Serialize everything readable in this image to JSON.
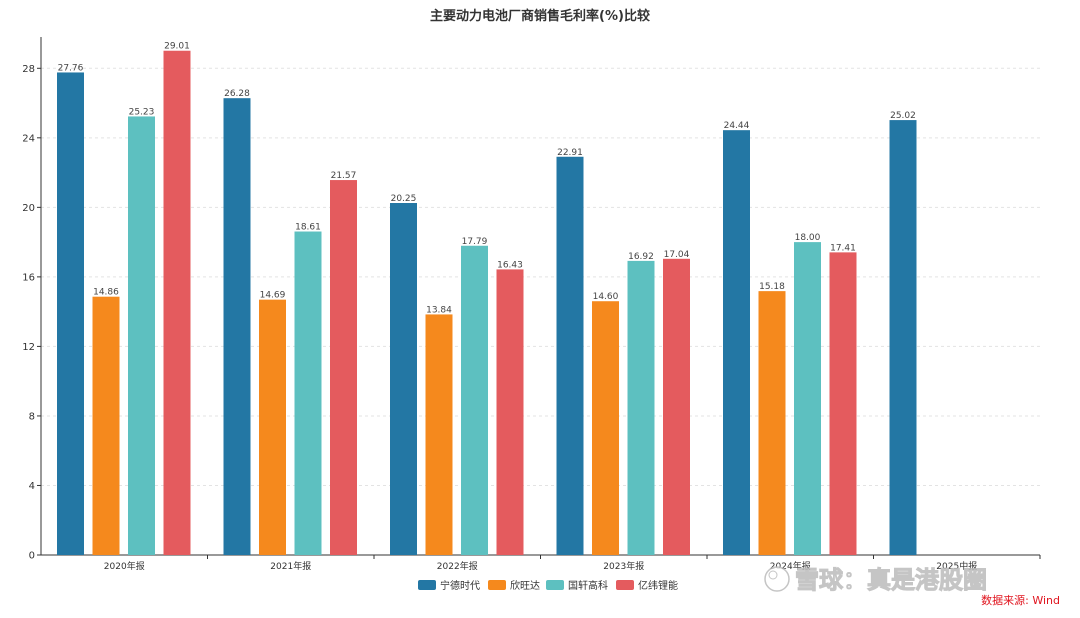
{
  "chart_data": {
    "type": "bar",
    "title": "主要动力电池厂商销售毛利率(%)比较",
    "categories": [
      "2020年报",
      "2021年报",
      "2022年报",
      "2023年报",
      "2024年报",
      "2025中报"
    ],
    "series": [
      {
        "name": "宁德时代",
        "color": "#2377a4",
        "values": [
          27.76,
          26.28,
          20.25,
          22.91,
          24.44,
          25.02
        ]
      },
      {
        "name": "欣旺达",
        "color": "#f5891d",
        "values": [
          14.86,
          14.69,
          13.84,
          14.6,
          15.18,
          null
        ]
      },
      {
        "name": "国轩高科",
        "color": "#5dc0c0",
        "values": [
          25.23,
          18.61,
          17.79,
          16.92,
          18.0,
          null
        ]
      },
      {
        "name": "亿纬锂能",
        "color": "#e45b5e",
        "values": [
          29.01,
          21.57,
          16.43,
          17.04,
          17.41,
          null
        ]
      }
    ],
    "yticks": [
      0,
      4,
      8,
      12,
      16,
      20,
      24,
      28
    ],
    "ylim": [
      0,
      29.8
    ],
    "grid": true,
    "legend_position": "bottom-center",
    "source_text": "数据来源: Wind",
    "source_color": "#e0141e",
    "watermark_text": "雪球：真是港股圈"
  }
}
